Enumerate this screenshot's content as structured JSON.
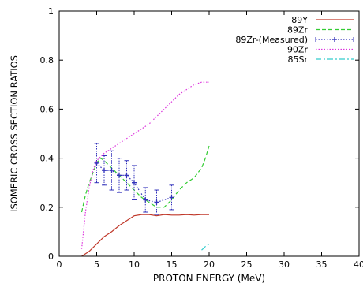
{
  "chart_data": {
    "type": "line",
    "title": "",
    "xlabel": "PROTON ENERGY (MeV)",
    "ylabel": "ISOMERIC CROSS SECTION RATIOS",
    "xlim": [
      0,
      40
    ],
    "ylim": [
      0,
      1
    ],
    "xticks": [
      0,
      5,
      10,
      15,
      20,
      25,
      30,
      35,
      40
    ],
    "yticks": [
      0,
      0.2,
      0.4,
      0.6,
      0.8,
      1
    ],
    "xtick_labels": [
      "0",
      "5",
      "10",
      "15",
      "20",
      "25",
      "30",
      "35",
      "40"
    ],
    "ytick_labels": [
      "0",
      "0.2",
      "0.4",
      "0.6",
      "0.8",
      "1"
    ],
    "grid": false,
    "legend_position": "top-right",
    "series": [
      {
        "name": "89Y",
        "color": "#c0392b",
        "style": "solid",
        "x": [
          3.0,
          4.0,
          5.0,
          6.0,
          7.0,
          8.0,
          9.0,
          10.0,
          11.0,
          12.0,
          13.0,
          14.0,
          15.0,
          16.0,
          17.0,
          18.0,
          19.0,
          20.0
        ],
        "y": [
          0.0,
          0.02,
          0.05,
          0.08,
          0.1,
          0.125,
          0.145,
          0.165,
          0.17,
          0.17,
          0.165,
          0.17,
          0.168,
          0.168,
          0.17,
          0.168,
          0.17,
          0.17
        ]
      },
      {
        "name": "89Zr",
        "color": "#33cc33",
        "style": "dashed",
        "x": [
          3.0,
          3.5,
          4.0,
          4.5,
          5.0,
          5.5,
          6.0,
          7.0,
          8.0,
          9.0,
          10.0,
          11.0,
          12.0,
          13.0,
          14.0,
          15.0,
          16.0,
          17.0,
          18.0,
          19.0,
          19.5,
          20.0
        ],
        "y": [
          0.18,
          0.25,
          0.3,
          0.34,
          0.38,
          0.4,
          0.39,
          0.36,
          0.33,
          0.3,
          0.27,
          0.24,
          0.22,
          0.2,
          0.2,
          0.23,
          0.27,
          0.3,
          0.32,
          0.36,
          0.4,
          0.45
        ]
      },
      {
        "name": "89Zr-(Measured)",
        "color": "#3333bb",
        "style": "dotted-errorbars",
        "x": [
          5.0,
          6.0,
          7.0,
          8.0,
          9.0,
          10.0,
          11.5,
          13.0,
          15.0
        ],
        "y": [
          0.38,
          0.35,
          0.35,
          0.33,
          0.33,
          0.3,
          0.23,
          0.22,
          0.24
        ],
        "err": [
          0.08,
          0.06,
          0.08,
          0.07,
          0.06,
          0.07,
          0.05,
          0.05,
          0.05
        ]
      },
      {
        "name": "90Zr",
        "color": "#dd33dd",
        "style": "dotted",
        "x": [
          3.0,
          3.5,
          4.0,
          4.5,
          5.0,
          6.0,
          7.0,
          8.0,
          9.0,
          10.0,
          11.0,
          12.0,
          13.0,
          14.0,
          15.0,
          16.0,
          17.0,
          18.0,
          19.0,
          20.0
        ],
        "y": [
          0.03,
          0.18,
          0.28,
          0.35,
          0.39,
          0.42,
          0.44,
          0.46,
          0.48,
          0.5,
          0.52,
          0.54,
          0.57,
          0.6,
          0.63,
          0.66,
          0.68,
          0.7,
          0.71,
          0.71
        ]
      },
      {
        "name": "85Sr",
        "color": "#33cccc",
        "style": "dashdot",
        "x": [
          19.0,
          19.5,
          20.0
        ],
        "y": [
          0.025,
          0.04,
          0.05
        ]
      }
    ]
  }
}
